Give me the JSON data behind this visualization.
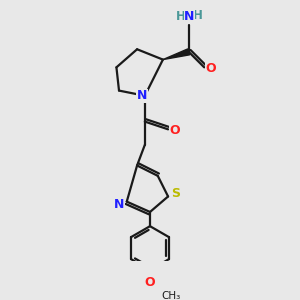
{
  "bg_color": "#e8e8e8",
  "bond_color": "#1a1a1a",
  "N_color": "#2020ff",
  "O_color": "#ff2020",
  "S_color": "#bbbb00",
  "H_color": "#4a9898",
  "line_width": 1.6,
  "figsize": [
    3.0,
    3.0
  ],
  "dpi": 100,
  "xlim": [
    0,
    10
  ],
  "ylim": [
    0,
    10
  ]
}
